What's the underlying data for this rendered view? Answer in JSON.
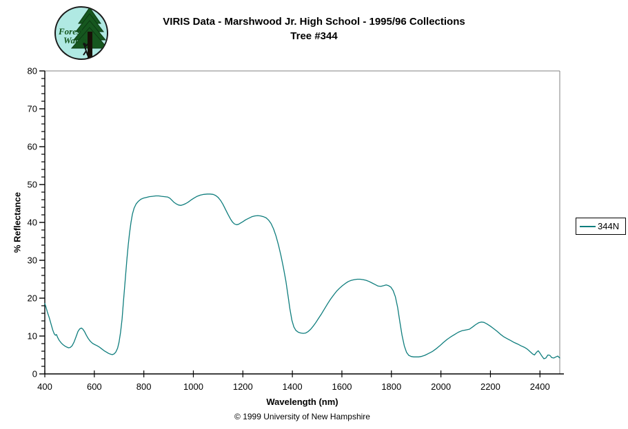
{
  "header": {
    "title_line1": "VIRIS Data - Marshwood Jr. High School - 1995/96 Collections",
    "title_line2": "Tree #344"
  },
  "logo": {
    "text_line1": "Forest",
    "text_line2": "Watch",
    "bg_color": "#b0e9e3",
    "tree_color": "#16571f",
    "trunk_color": "#181008",
    "text_color": "#14551c"
  },
  "legend": {
    "label": "344N",
    "line_color": "#0e7d7d"
  },
  "footer": {
    "copyright": "© 1999 University of New Hampshire"
  },
  "chart_data": {
    "type": "line",
    "title": "VIRIS Data - Marshwood Jr. High School - 1995/96 Collections — Tree #344",
    "xlabel": "Wavelength (nm)",
    "ylabel": "% Reflectance",
    "xlim": [
      400,
      2480
    ],
    "ylim": [
      0,
      80
    ],
    "x_ticks": [
      400,
      600,
      800,
      1000,
      1200,
      1400,
      1600,
      1800,
      2000,
      2200,
      2400
    ],
    "y_ticks": [
      0,
      10,
      20,
      30,
      40,
      50,
      60,
      70,
      80
    ],
    "y_minor_step": 2,
    "grid": false,
    "legend_position": "right",
    "axis_color": "#000000",
    "frame_color": "#808080",
    "series": [
      {
        "name": "344N",
        "color": "#0e7d7d",
        "points": [
          [
            400,
            18.6
          ],
          [
            405,
            17.6
          ],
          [
            410,
            16.4
          ],
          [
            418,
            14.8
          ],
          [
            425,
            13.2
          ],
          [
            432,
            11.6
          ],
          [
            438,
            10.6
          ],
          [
            443,
            10.2
          ],
          [
            447,
            10.4
          ],
          [
            452,
            9.6
          ],
          [
            458,
            8.9
          ],
          [
            465,
            8.3
          ],
          [
            472,
            7.8
          ],
          [
            480,
            7.4
          ],
          [
            488,
            7.1
          ],
          [
            496,
            6.9
          ],
          [
            503,
            7.0
          ],
          [
            510,
            7.4
          ],
          [
            518,
            8.4
          ],
          [
            526,
            9.8
          ],
          [
            534,
            11.2
          ],
          [
            541,
            11.9
          ],
          [
            548,
            12.1
          ],
          [
            554,
            11.8
          ],
          [
            561,
            11.1
          ],
          [
            568,
            10.2
          ],
          [
            576,
            9.3
          ],
          [
            584,
            8.6
          ],
          [
            592,
            8.1
          ],
          [
            600,
            7.8
          ],
          [
            610,
            7.5
          ],
          [
            620,
            7.1
          ],
          [
            630,
            6.6
          ],
          [
            640,
            6.1
          ],
          [
            650,
            5.7
          ],
          [
            658,
            5.4
          ],
          [
            666,
            5.2
          ],
          [
            673,
            5.1
          ],
          [
            680,
            5.3
          ],
          [
            687,
            5.8
          ],
          [
            694,
            6.8
          ],
          [
            700,
            8.4
          ],
          [
            706,
            11.0
          ],
          [
            712,
            14.5
          ],
          [
            717,
            18.5
          ],
          [
            722,
            22.5
          ],
          [
            727,
            26.5
          ],
          [
            732,
            30.5
          ],
          [
            737,
            34.0
          ],
          [
            742,
            37.0
          ],
          [
            748,
            40.0
          ],
          [
            754,
            42.2
          ],
          [
            761,
            43.8
          ],
          [
            769,
            44.9
          ],
          [
            778,
            45.6
          ],
          [
            788,
            46.1
          ],
          [
            798,
            46.4
          ],
          [
            810,
            46.6
          ],
          [
            822,
            46.8
          ],
          [
            835,
            46.9
          ],
          [
            848,
            47.0
          ],
          [
            860,
            47.0
          ],
          [
            872,
            46.9
          ],
          [
            884,
            46.8
          ],
          [
            896,
            46.7
          ],
          [
            905,
            46.4
          ],
          [
            913,
            45.9
          ],
          [
            922,
            45.3
          ],
          [
            931,
            44.9
          ],
          [
            940,
            44.6
          ],
          [
            950,
            44.5
          ],
          [
            960,
            44.7
          ],
          [
            970,
            45.0
          ],
          [
            980,
            45.4
          ],
          [
            990,
            45.9
          ],
          [
            1002,
            46.4
          ],
          [
            1015,
            46.9
          ],
          [
            1028,
            47.2
          ],
          [
            1042,
            47.4
          ],
          [
            1056,
            47.5
          ],
          [
            1068,
            47.5
          ],
          [
            1080,
            47.4
          ],
          [
            1090,
            47.1
          ],
          [
            1100,
            46.6
          ],
          [
            1110,
            45.8
          ],
          [
            1120,
            44.7
          ],
          [
            1130,
            43.4
          ],
          [
            1140,
            42.1
          ],
          [
            1150,
            40.9
          ],
          [
            1158,
            40.1
          ],
          [
            1166,
            39.6
          ],
          [
            1174,
            39.4
          ],
          [
            1182,
            39.5
          ],
          [
            1190,
            39.8
          ],
          [
            1200,
            40.2
          ],
          [
            1212,
            40.7
          ],
          [
            1224,
            41.1
          ],
          [
            1236,
            41.5
          ],
          [
            1248,
            41.7
          ],
          [
            1260,
            41.8
          ],
          [
            1272,
            41.7
          ],
          [
            1284,
            41.5
          ],
          [
            1294,
            41.2
          ],
          [
            1304,
            40.6
          ],
          [
            1314,
            39.7
          ],
          [
            1324,
            38.3
          ],
          [
            1334,
            36.4
          ],
          [
            1344,
            34.0
          ],
          [
            1354,
            31.2
          ],
          [
            1364,
            28.0
          ],
          [
            1374,
            24.4
          ],
          [
            1382,
            20.8
          ],
          [
            1390,
            17.2
          ],
          [
            1398,
            14.2
          ],
          [
            1406,
            12.4
          ],
          [
            1414,
            11.5
          ],
          [
            1424,
            11.0
          ],
          [
            1434,
            10.8
          ],
          [
            1444,
            10.7
          ],
          [
            1454,
            10.8
          ],
          [
            1464,
            11.2
          ],
          [
            1474,
            11.8
          ],
          [
            1484,
            12.6
          ],
          [
            1494,
            13.5
          ],
          [
            1506,
            14.7
          ],
          [
            1518,
            15.9
          ],
          [
            1530,
            17.2
          ],
          [
            1542,
            18.5
          ],
          [
            1554,
            19.7
          ],
          [
            1566,
            20.8
          ],
          [
            1578,
            21.8
          ],
          [
            1590,
            22.6
          ],
          [
            1602,
            23.3
          ],
          [
            1614,
            23.9
          ],
          [
            1626,
            24.4
          ],
          [
            1638,
            24.7
          ],
          [
            1650,
            24.9
          ],
          [
            1662,
            25.0
          ],
          [
            1674,
            25.0
          ],
          [
            1686,
            24.9
          ],
          [
            1698,
            24.7
          ],
          [
            1710,
            24.4
          ],
          [
            1722,
            24.0
          ],
          [
            1734,
            23.6
          ],
          [
            1746,
            23.2
          ],
          [
            1757,
            23.1
          ],
          [
            1768,
            23.3
          ],
          [
            1779,
            23.5
          ],
          [
            1789,
            23.3
          ],
          [
            1798,
            22.9
          ],
          [
            1807,
            22.0
          ],
          [
            1816,
            20.4
          ],
          [
            1825,
            17.6
          ],
          [
            1834,
            13.8
          ],
          [
            1843,
            10.2
          ],
          [
            1852,
            7.4
          ],
          [
            1861,
            5.7
          ],
          [
            1870,
            4.9
          ],
          [
            1880,
            4.6
          ],
          [
            1890,
            4.5
          ],
          [
            1900,
            4.5
          ],
          [
            1910,
            4.5
          ],
          [
            1920,
            4.6
          ],
          [
            1935,
            4.9
          ],
          [
            1950,
            5.4
          ],
          [
            1965,
            5.9
          ],
          [
            1980,
            6.6
          ],
          [
            1995,
            7.4
          ],
          [
            2010,
            8.3
          ],
          [
            2025,
            9.1
          ],
          [
            2040,
            9.8
          ],
          [
            2055,
            10.4
          ],
          [
            2070,
            11.0
          ],
          [
            2085,
            11.4
          ],
          [
            2100,
            11.6
          ],
          [
            2115,
            11.8
          ],
          [
            2128,
            12.4
          ],
          [
            2140,
            13.0
          ],
          [
            2152,
            13.5
          ],
          [
            2164,
            13.7
          ],
          [
            2174,
            13.6
          ],
          [
            2186,
            13.2
          ],
          [
            2200,
            12.6
          ],
          [
            2212,
            12.0
          ],
          [
            2226,
            11.3
          ],
          [
            2240,
            10.5
          ],
          [
            2254,
            9.8
          ],
          [
            2268,
            9.3
          ],
          [
            2282,
            8.8
          ],
          [
            2296,
            8.3
          ],
          [
            2310,
            7.9
          ],
          [
            2324,
            7.4
          ],
          [
            2338,
            7.0
          ],
          [
            2350,
            6.5
          ],
          [
            2360,
            5.9
          ],
          [
            2370,
            5.3
          ],
          [
            2378,
            5.0
          ],
          [
            2386,
            5.7
          ],
          [
            2393,
            6.1
          ],
          [
            2400,
            5.5
          ],
          [
            2408,
            4.7
          ],
          [
            2416,
            4.0
          ],
          [
            2424,
            4.2
          ],
          [
            2432,
            5.0
          ],
          [
            2440,
            4.9
          ],
          [
            2448,
            4.3
          ],
          [
            2456,
            4.2
          ],
          [
            2464,
            4.5
          ],
          [
            2472,
            4.7
          ],
          [
            2480,
            4.2
          ]
        ]
      }
    ]
  }
}
